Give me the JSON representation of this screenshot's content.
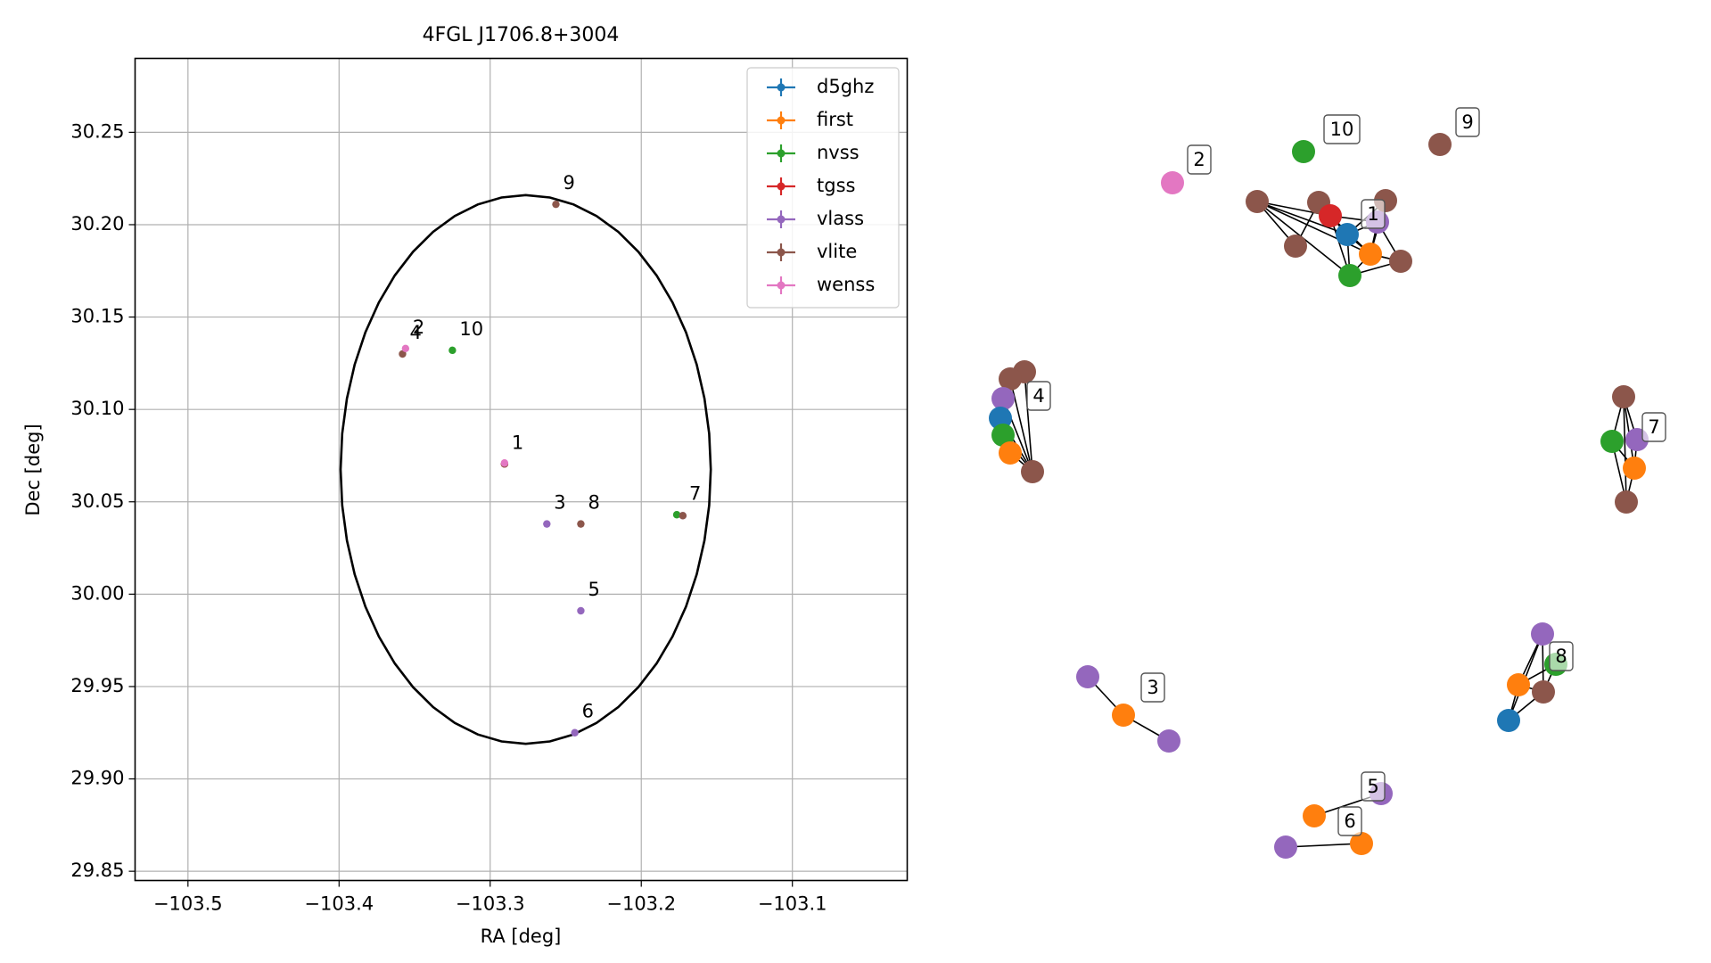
{
  "chart_data": [
    {
      "type": "scatter",
      "title": "4FGL J1706.8+3004",
      "xlabel": "RA [deg]",
      "ylabel": "Dec [deg]",
      "xlim": [
        -103.535,
        -103.024
      ],
      "ylim": [
        29.845,
        30.29
      ],
      "xticks": [
        -103.5,
        -103.4,
        -103.3,
        -103.2,
        -103.1
      ],
      "xtick_labels": [
        "−103.5",
        "−103.4",
        "−103.3",
        "−103.2",
        "−103.1"
      ],
      "yticks": [
        29.85,
        29.9,
        29.95,
        30.0,
        30.05,
        30.1,
        30.15,
        30.2,
        30.25
      ],
      "ytick_labels": [
        "29.85",
        "29.90",
        "29.95",
        "30.00",
        "30.05",
        "30.10",
        "30.15",
        "30.20",
        "30.25"
      ],
      "grid": true,
      "legend_position": "upper-right",
      "series": [
        {
          "name": "d5ghz",
          "color": "#1f77b4",
          "points": [
            {
              "ra": -103.2905,
              "dec": 30.0705
            }
          ]
        },
        {
          "name": "first",
          "color": "#ff7f0e",
          "points": [
            {
              "ra": -103.2905,
              "dec": 30.0705
            }
          ]
        },
        {
          "name": "nvss",
          "color": "#2ca02c",
          "points": [
            {
              "ra": -103.325,
              "dec": 30.132
            },
            {
              "ra": -103.1765,
              "dec": 30.043
            }
          ]
        },
        {
          "name": "tgss",
          "color": "#d62728",
          "points": [
            {
              "ra": -103.2905,
              "dec": 30.0705
            }
          ]
        },
        {
          "name": "vlass",
          "color": "#9467bd",
          "points": [
            {
              "ra": -103.2625,
              "dec": 30.038
            },
            {
              "ra": -103.24,
              "dec": 29.991
            },
            {
              "ra": -103.244,
              "dec": 29.925
            },
            {
              "ra": -103.1725,
              "dec": 30.0425
            }
          ]
        },
        {
          "name": "vlite",
          "color": "#8c564b",
          "points": [
            {
              "ra": -103.358,
              "dec": 30.13
            },
            {
              "ra": -103.2565,
              "dec": 30.211
            },
            {
              "ra": -103.24,
              "dec": 30.038
            },
            {
              "ra": -103.1725,
              "dec": 30.0425
            },
            {
              "ra": -103.2905,
              "dec": 30.0705
            }
          ]
        },
        {
          "name": "wenss",
          "color": "#e377c2",
          "points": [
            {
              "ra": -103.356,
              "dec": 30.133
            },
            {
              "ra": -103.2905,
              "dec": 30.071
            }
          ]
        }
      ],
      "ellipse": {
        "center_ra": -103.2765,
        "center_dec": 30.0675,
        "semi_axis_ra": 0.1225,
        "semi_axis_dec": 0.1485
      },
      "annotations": [
        {
          "text": "1",
          "ra": -103.2905,
          "dec": 30.0705
        },
        {
          "text": "2",
          "ra": -103.356,
          "dec": 30.133
        },
        {
          "text": "3",
          "ra": -103.2625,
          "dec": 30.038
        },
        {
          "text": "4",
          "ra": -103.358,
          "dec": 30.13
        },
        {
          "text": "5",
          "ra": -103.24,
          "dec": 29.991
        },
        {
          "text": "6",
          "ra": -103.244,
          "dec": 29.925
        },
        {
          "text": "7",
          "ra": -103.173,
          "dec": 30.043
        },
        {
          "text": "8",
          "ra": -103.24,
          "dec": 30.038
        },
        {
          "text": "9",
          "ra": -103.2565,
          "dec": 30.211
        },
        {
          "text": "10",
          "ra": -103.325,
          "dec": 30.132
        }
      ]
    },
    {
      "type": "network",
      "groups": [
        {
          "label": "1"
        },
        {
          "label": "2"
        },
        {
          "label": "3"
        },
        {
          "label": "4"
        },
        {
          "label": "5"
        },
        {
          "label": "6"
        },
        {
          "label": "7"
        },
        {
          "label": "8"
        },
        {
          "label": "9"
        },
        {
          "label": "10"
        }
      ]
    }
  ]
}
